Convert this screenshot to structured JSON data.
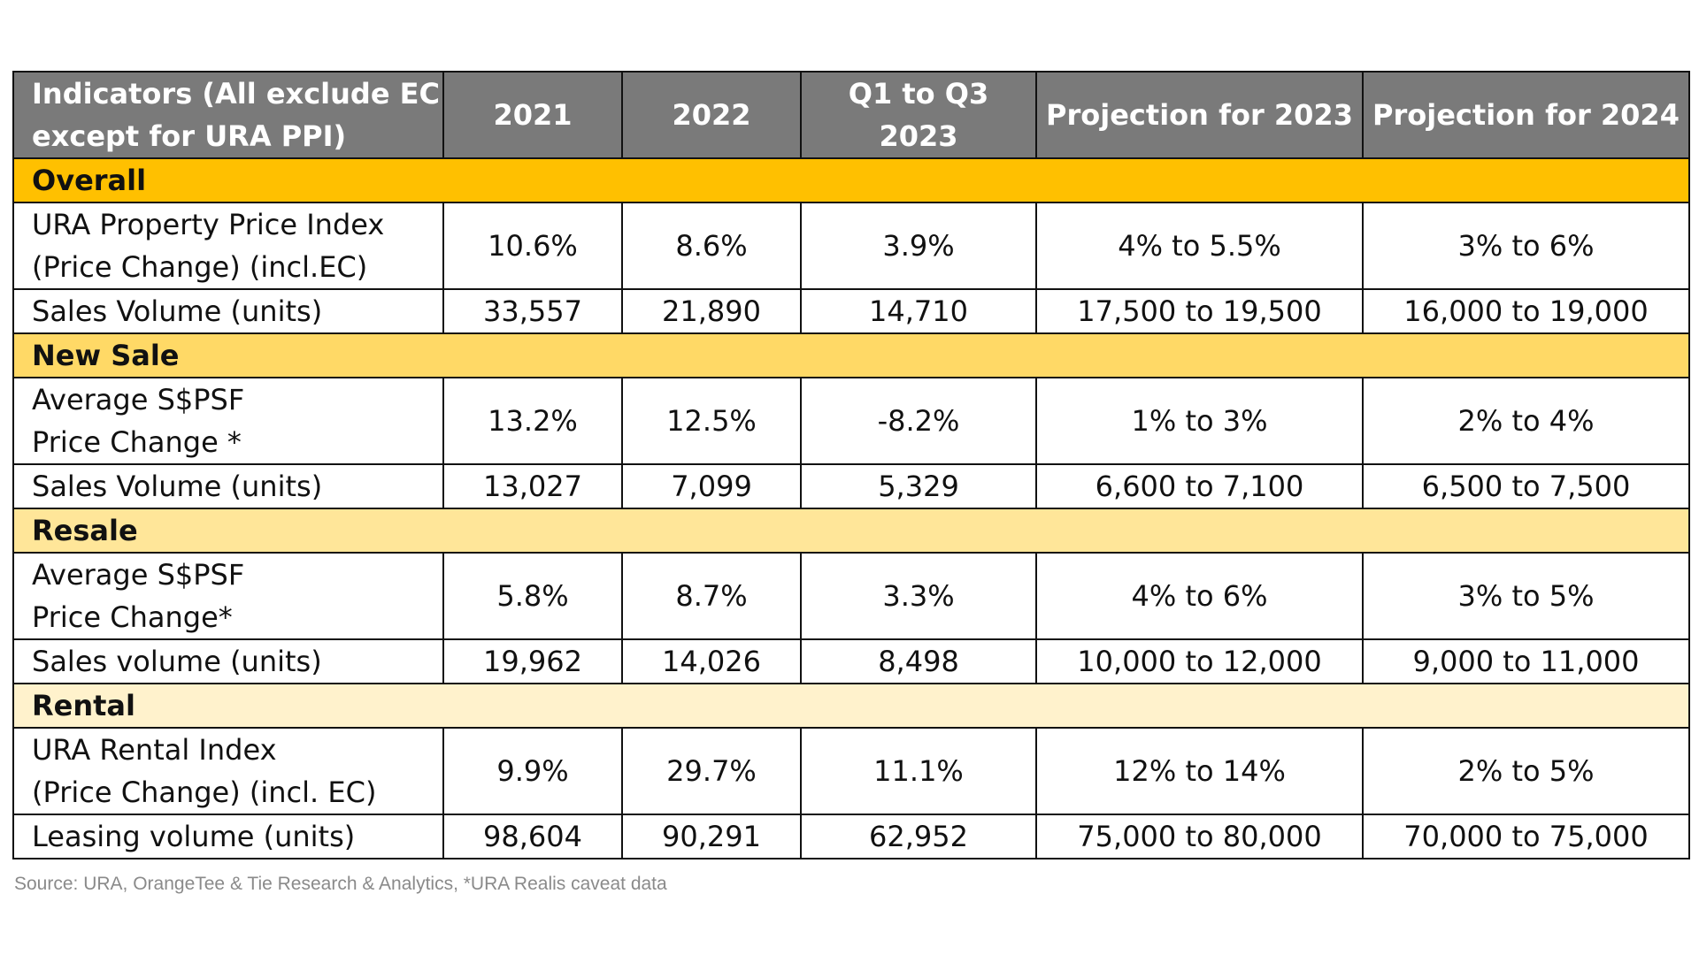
{
  "colors": {
    "header_bg": "#7a7a7a",
    "header_text": "#ffffff",
    "border": "#111111",
    "source_text": "#8a8a8a",
    "section_overall": "#ffc000",
    "section_new_sale": "#ffd966",
    "section_resale": "#ffe699",
    "section_rental": "#fff2cc"
  },
  "table": {
    "header": {
      "indicator_line1": "Indicators (All exclude EC",
      "indicator_line2": "except for URA PPI)",
      "col_2021": "2021",
      "col_2022": "2022",
      "col_q_line1": "Q1 to Q3",
      "col_q_line2": "2023",
      "col_proj_2023": "Projection for 2023",
      "col_proj_2024": "Projection for 2024"
    },
    "sections": [
      {
        "title": "Overall",
        "rows": [
          {
            "label_line1": "URA Property Price Index",
            "label_line2": "(Price Change) (incl.EC)",
            "values": [
              "10.6%",
              "8.6%",
              "3.9%",
              "4% to 5.5%",
              "3% to 6%"
            ]
          },
          {
            "label_line1": "Sales Volume (units)",
            "values": [
              "33,557",
              "21,890",
              "14,710",
              "17,500 to 19,500",
              "16,000 to 19,000"
            ]
          }
        ]
      },
      {
        "title": "New Sale",
        "rows": [
          {
            "label_line1": "Average S$PSF",
            "label_line2": "Price Change *",
            "values": [
              "13.2%",
              "12.5%",
              "-8.2%",
              "1% to 3%",
              "2% to 4%"
            ]
          },
          {
            "label_line1": "Sales Volume (units)",
            "values": [
              "13,027",
              "7,099",
              "5,329",
              "6,600 to 7,100",
              "6,500 to 7,500"
            ]
          }
        ]
      },
      {
        "title": "Resale",
        "rows": [
          {
            "label_line1": "Average S$PSF",
            "label_line2": "Price Change*",
            "values": [
              "5.8%",
              "8.7%",
              "3.3%",
              "4% to 6%",
              "3% to 5%"
            ]
          },
          {
            "label_line1": "Sales volume (units)",
            "values": [
              "19,962",
              "14,026",
              "8,498",
              "10,000 to 12,000",
              "9,000 to 11,000"
            ]
          }
        ]
      },
      {
        "title": "Rental",
        "rows": [
          {
            "label_line1": "URA Rental Index",
            "label_line2": "(Price Change) (incl. EC)",
            "values": [
              "9.9%",
              "29.7%",
              "11.1%",
              "12% to 14%",
              "2% to 5%"
            ]
          },
          {
            "label_line1": "Leasing volume (units)",
            "values": [
              "98,604",
              "90,291",
              "62,952",
              "75,000 to 80,000",
              "70,000 to 75,000"
            ]
          }
        ]
      }
    ]
  },
  "source": "Source: URA, OrangeTee & Tie Research & Analytics, *URA Realis caveat data"
}
